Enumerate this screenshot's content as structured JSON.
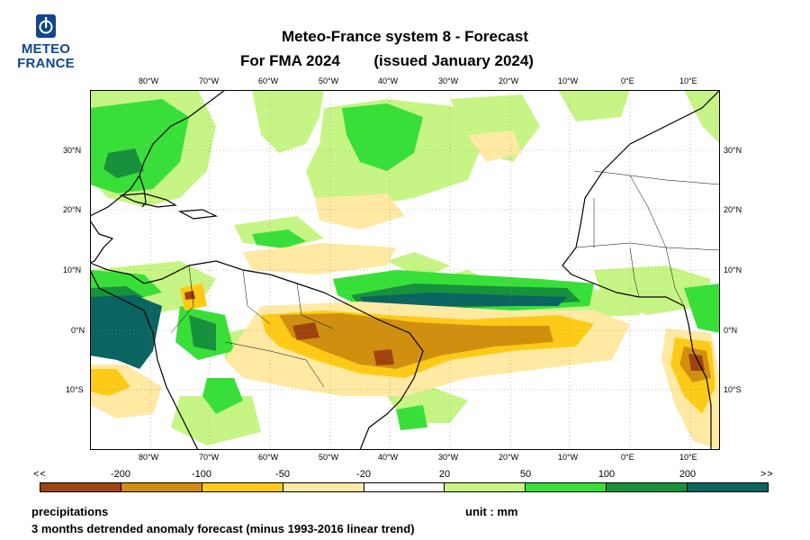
{
  "logo": {
    "line1": "METEO",
    "line2": "FRANCE"
  },
  "title": {
    "line1": "Meteo-France system 8  -  Forecast",
    "line2a": "For FMA 2024",
    "line2b": "(issued January 2024)"
  },
  "axes": {
    "lon_ticks": [
      "80°W",
      "70°W",
      "60°W",
      "50°W",
      "40°W",
      "30°W",
      "20°W",
      "10°W",
      "0°E",
      "10°E"
    ],
    "lat_ticks": [
      "30°N",
      "20°N",
      "10°N",
      "0°N",
      "10°S"
    ],
    "lon_range": [
      -90,
      15
    ],
    "lat_range": [
      -20,
      40
    ]
  },
  "legend": {
    "left_end": "<<",
    "right_end": ">>",
    "labels": [
      "-200",
      "-100",
      "-50",
      "-20",
      "20",
      "50",
      "100",
      "200"
    ],
    "colors": [
      "#a0430e",
      "#d18f10",
      "#fdcb17",
      "#ffe9a3",
      "#ffffff",
      "#c7f585",
      "#39df39",
      "#17913c",
      "#0a6460"
    ]
  },
  "footer": {
    "variable": "precipitations",
    "unit": "unit : mm",
    "description": "3 months detrended anomaly forecast (minus 1993-2016 linear trend)"
  }
}
